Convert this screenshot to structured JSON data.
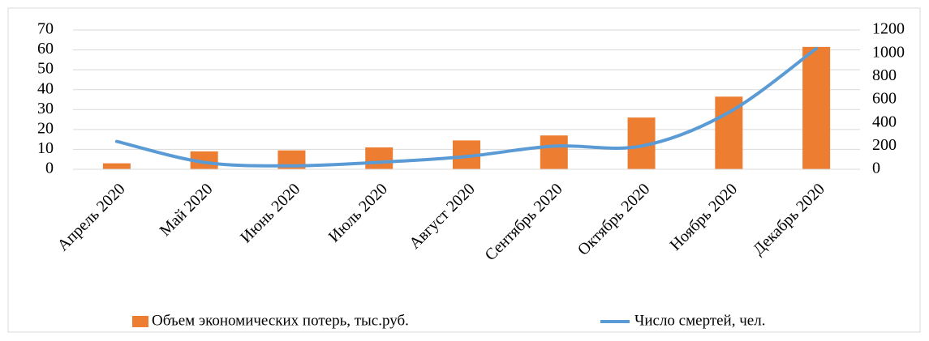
{
  "chart_data": {
    "type": "bar-line",
    "categories": [
      "Апрель 2020",
      "Май 2020",
      "Июнь 2020",
      "Июль 2020",
      "Август 2020",
      "Сентябрь 2020",
      "Октябрь 2020",
      "Ноябрь 2020",
      "Декабрь 2020"
    ],
    "series": [
      {
        "name": "Объем экономических потерь, тыс.руб.",
        "type": "bar",
        "color": "#ed7d31",
        "values": [
          3,
          9,
          9.5,
          11,
          14.5,
          17,
          26,
          36.5,
          61.5
        ]
      },
      {
        "name": "Число смертей, чел.",
        "type": "line",
        "axis": "y2",
        "color": "#5b9bd5",
        "values": [
          240,
          60,
          30,
          60,
          110,
          200,
          200,
          490,
          1040
        ]
      }
    ],
    "ylim": [
      0,
      70
    ],
    "yticks": [
      0,
      10,
      20,
      30,
      40,
      50,
      60,
      70
    ],
    "y2lim": [
      0,
      1200
    ],
    "y2ticks": [
      0,
      200,
      400,
      600,
      800,
      1000,
      1200
    ],
    "grid": true,
    "legend": "bottom"
  }
}
